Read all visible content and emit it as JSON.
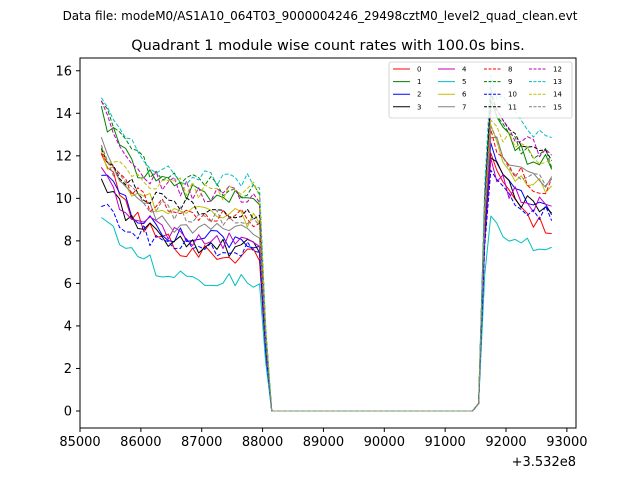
{
  "suptitle": "Data file: modeM0/AS1A10_064T03_9000004246_29498cztM0_level2_quad_clean.evt",
  "chart_data": {
    "type": "line",
    "title": "Quadrant 1 module wise count rates with 100.0s bins.",
    "xlabel": "",
    "ylabel": "",
    "x_offset_label": "+3.532e8",
    "xlim": [
      85000,
      93150
    ],
    "ylim": [
      -0.8,
      16.6
    ],
    "xticks": [
      85000,
      86000,
      87000,
      88000,
      89000,
      90000,
      91000,
      92000,
      93000
    ],
    "yticks": [
      0,
      2,
      4,
      6,
      8,
      10,
      12,
      14,
      16
    ],
    "grid": false,
    "legend_position": "top-right",
    "legend_columns": 4,
    "x": {
      "start": 85350,
      "step": 100,
      "count": 75,
      "gap_start_index": 27,
      "gap_end_index": 62
    },
    "series": [
      {
        "name": "0",
        "color": "#ff0000",
        "style": "solid",
        "pre_start": 12.3,
        "plateau": 7.2,
        "post_peak": 12.5,
        "post_end": 8.3
      },
      {
        "name": "1",
        "color": "#008000",
        "style": "solid",
        "pre_start": 14.2,
        "plateau": 9.9,
        "post_peak": 14.6,
        "post_end": 11.3
      },
      {
        "name": "2",
        "color": "#0000ff",
        "style": "solid",
        "pre_start": 11.5,
        "plateau": 7.9,
        "post_peak": 12.2,
        "post_end": 9.1
      },
      {
        "name": "3",
        "color": "#000000",
        "style": "solid",
        "pre_start": 11.0,
        "plateau": 7.6,
        "post_peak": 12.0,
        "post_end": 9.1
      },
      {
        "name": "4",
        "color": "#bf00bf",
        "style": "solid",
        "pre_start": 11.2,
        "plateau": 7.9,
        "post_peak": 11.6,
        "post_end": 9.4
      },
      {
        "name": "5",
        "color": "#00bfbf",
        "style": "solid",
        "pre_start": 9.4,
        "plateau": 6.1,
        "post_peak": 9.4,
        "post_end": 7.4
      },
      {
        "name": "6",
        "color": "#bfbf00",
        "style": "solid",
        "pre_start": 12.2,
        "plateau": 9.0,
        "post_peak": 13.3,
        "post_end": 10.1
      },
      {
        "name": "7",
        "color": "#808080",
        "style": "solid",
        "pre_start": 12.5,
        "plateau": 8.3,
        "post_peak": 13.2,
        "post_end": 10.5
      },
      {
        "name": "8",
        "color": "#ff0000",
        "style": "dashed",
        "pre_start": 12.3,
        "plateau": 9.0,
        "post_peak": 13.2,
        "post_end": 10.3
      },
      {
        "name": "9",
        "color": "#008000",
        "style": "dashed",
        "pre_start": 14.4,
        "plateau": 10.4,
        "post_peak": 14.8,
        "post_end": 11.6
      },
      {
        "name": "10",
        "color": "#0000ff",
        "style": "dashed",
        "pre_start": 10.0,
        "plateau": 7.6,
        "post_peak": 11.4,
        "post_end": 9.1
      },
      {
        "name": "11",
        "color": "#000000",
        "style": "dashed",
        "pre_start": 12.4,
        "plateau": 9.4,
        "post_peak": 14.6,
        "post_end": 11.8
      },
      {
        "name": "12",
        "color": "#bf00bf",
        "style": "dashed",
        "pre_start": 14.3,
        "plateau": 10.0,
        "post_peak": 14.3,
        "post_end": 12.0
      },
      {
        "name": "13",
        "color": "#00bfbf",
        "style": "dashed",
        "pre_start": 15.0,
        "plateau": 10.7,
        "post_peak": 15.6,
        "post_end": 12.7
      },
      {
        "name": "14",
        "color": "#bfbf00",
        "style": "dashed",
        "pre_start": 12.4,
        "plateau": 10.3,
        "post_peak": 14.0,
        "post_end": 11.6
      },
      {
        "name": "15",
        "color": "#808080",
        "style": "dashed",
        "pre_start": 12.1,
        "plateau": 8.9,
        "post_peak": 13.3,
        "post_end": 10.6
      }
    ]
  }
}
